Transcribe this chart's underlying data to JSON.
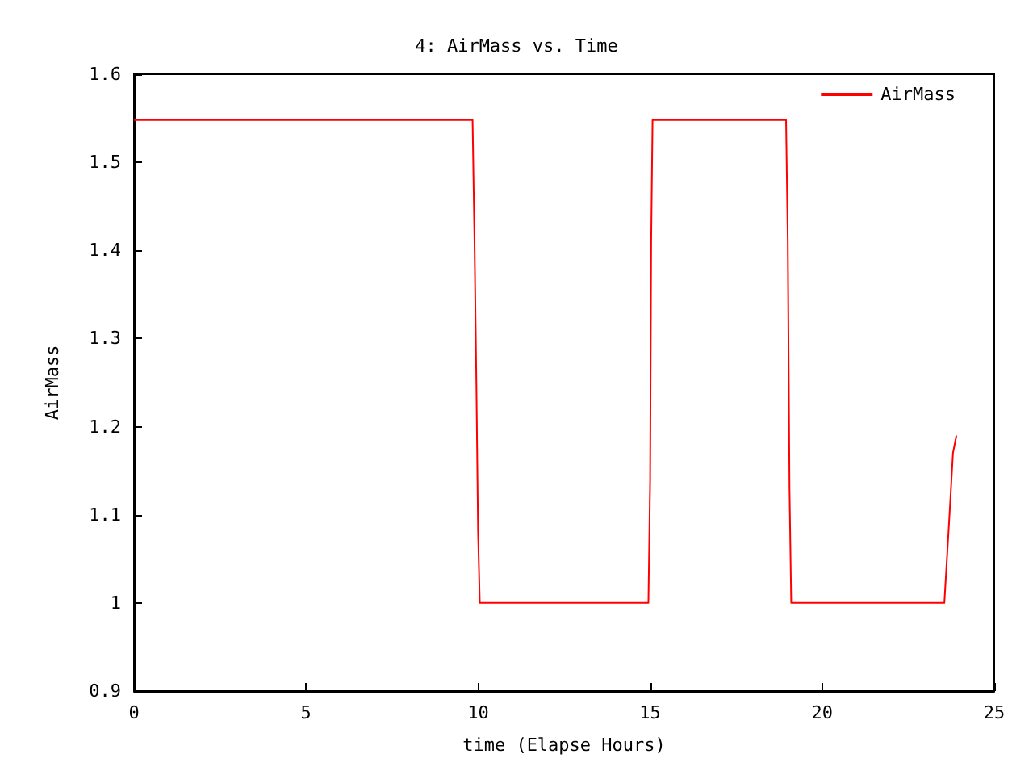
{
  "chart_data": {
    "type": "line",
    "title": "4: AirMass vs. Time",
    "xlabel": "time (Elapse Hours)",
    "ylabel": "AirMass",
    "series": [
      {
        "name": "AirMass",
        "color": "#ff0000",
        "x": [
          0,
          9.84,
          9.9,
          9.95,
          10.0,
          10.05,
          14.95,
          15.0,
          15.03,
          15.07,
          18.95,
          19.0,
          19.05,
          19.1,
          23.55,
          23.7,
          23.8,
          23.9
        ],
        "values": [
          1.548,
          1.548,
          1.4,
          1.25,
          1.08,
          1.0,
          1.0,
          1.14,
          1.41,
          1.548,
          1.548,
          1.41,
          1.13,
          1.0,
          1.0,
          1.1,
          1.17,
          1.19
        ]
      }
    ],
    "xlim": [
      0,
      25
    ],
    "xticks": [
      0,
      5,
      10,
      15,
      20,
      25
    ],
    "ylim": [
      0.9,
      1.6
    ],
    "yticks": [
      0.9,
      1,
      1.1,
      1.2,
      1.3,
      1.4,
      1.5,
      1.6
    ],
    "grid": false,
    "legend": "top right",
    "marker": "none",
    "line_style": "solid"
  }
}
